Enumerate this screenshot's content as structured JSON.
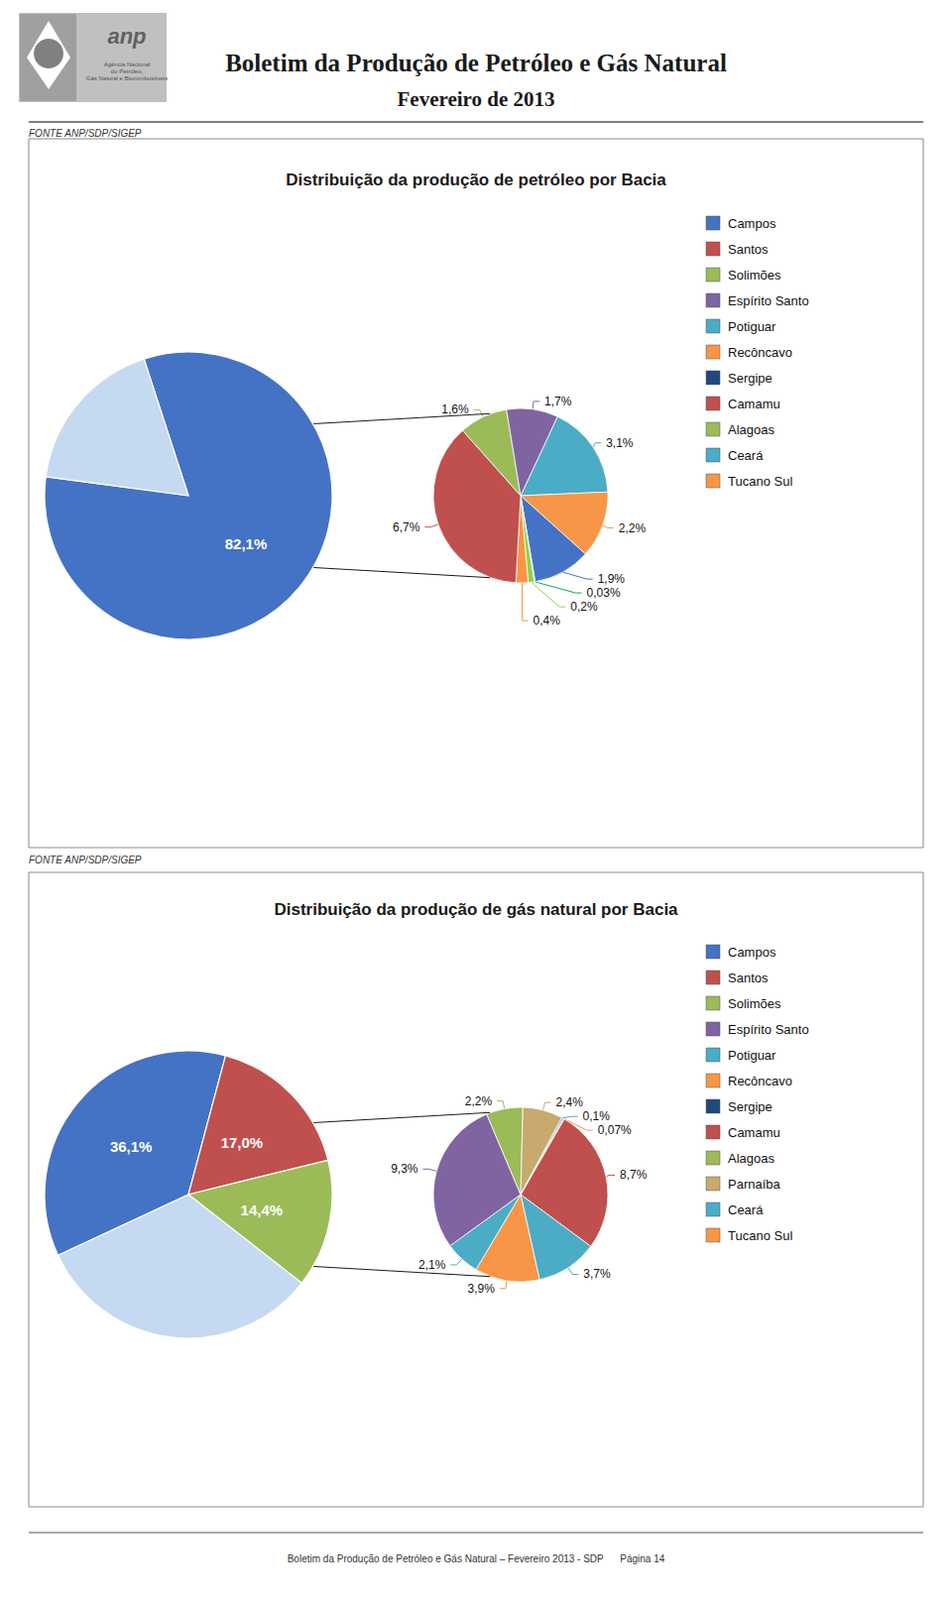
{
  "chart_data": [
    {
      "type": "pie",
      "title": "Distribuição da produção de petróleo por Bacia",
      "annotations": [
        "Boletim da Produção de Petróleo e Gás Natural",
        "Fevereiro de 2013",
        "anp",
        "Agência Nacional\ndo Petróleo,\nGás Natural e Biocombustíveis",
        "FONTE ANP/SDP/SIGEP"
      ],
      "data_labels": true,
      "series": [
        {
          "type": "pie",
          "values": [
            82.1,
            17.9
          ],
          "value_labels": [
            "82,1%",
            null
          ],
          "colors": [
            "#4472C4",
            "#C5D9F1"
          ]
        },
        {
          "type": "pie",
          "values": [
            3.1,
            2.2,
            1.9,
            0.03,
            0.2,
            0.4,
            6.7,
            1.6,
            1.7
          ],
          "value_labels": [
            "3,1%",
            "2,2%",
            "1,9%",
            "0,03%",
            "0,2%",
            "0,4%",
            "6,7%",
            "1,6%",
            "1,7%"
          ],
          "colors": [
            "#4BACC6",
            "#F79646",
            "#4472C4",
            "#00B050",
            "#92D050",
            "#F79646",
            "#C0504D",
            "#9BBB59",
            "#8064A2"
          ]
        }
      ],
      "legend": "right",
      "legend_entries": [
        {
          "name": "Campos",
          "color": "#4472C4"
        },
        {
          "name": "Santos",
          "color": "#C0504D"
        },
        {
          "name": "Solimões",
          "color": "#9BBB59"
        },
        {
          "name": "Espírito Santo",
          "color": "#8064A2"
        },
        {
          "name": "Potiguar",
          "color": "#4BACC6"
        },
        {
          "name": "Recôncavo",
          "color": "#F79646"
        },
        {
          "name": "Sergipe",
          "color": "#1F497D"
        },
        {
          "name": "Camamu",
          "color": "#C0504D"
        },
        {
          "name": "Alagoas",
          "color": "#9BBB59"
        },
        {
          "name": "Ceará",
          "color": "#4BACC6"
        },
        {
          "name": "Tucano Sul",
          "color": "#F79646"
        }
      ]
    },
    {
      "type": "pie",
      "title": "Distribuição da produção de gás natural por Bacia",
      "annotations": [
        "FONTE ANP/SDP/SIGEP",
        "Boletim da Produção de Petróleo e Gás Natural – Fevereiro 2013 - SDP      Página 14"
      ],
      "data_labels": true,
      "series": [
        {
          "type": "pie",
          "values": [
            36.1,
            17.0,
            14.4,
            32.5
          ],
          "value_labels": [
            "36,1%",
            "17,0%",
            "14,4%",
            null
          ],
          "colors": [
            "#4472C4",
            "#C0504D",
            "#9BBB59",
            "#C5D9F1"
          ]
        },
        {
          "type": "pie",
          "values": [
            8.7,
            3.7,
            3.9,
            2.1,
            9.3,
            2.2,
            2.4,
            0.1,
            0.07
          ],
          "value_labels": [
            "8,7%",
            "3,7%",
            "3,9%",
            "2,1%",
            "9,3%",
            "2,2%",
            "2,4%",
            "0,1%",
            "0,07%"
          ],
          "colors": [
            "#C0504D",
            "#4BACC6",
            "#F79646",
            "#4BACC6",
            "#8064A2",
            "#9BBB59",
            "#C8A96E",
            "#4BACC6",
            "#F79646"
          ]
        }
      ],
      "legend": "right",
      "legend_entries": [
        {
          "name": "Campos",
          "color": "#4472C4"
        },
        {
          "name": "Santos",
          "color": "#C0504D"
        },
        {
          "name": "Solimões",
          "color": "#9BBB59"
        },
        {
          "name": "Espírito Santo",
          "color": "#8064A2"
        },
        {
          "name": "Potiguar",
          "color": "#4BACC6"
        },
        {
          "name": "Recôncavo",
          "color": "#F79646"
        },
        {
          "name": "Sergipe",
          "color": "#1F497D"
        },
        {
          "name": "Camamu",
          "color": "#C0504D"
        },
        {
          "name": "Alagoas",
          "color": "#9BBB59"
        },
        {
          "name": "Parnaíba",
          "color": "#C8A96E"
        },
        {
          "name": "Ceará",
          "color": "#4BACC6"
        },
        {
          "name": "Tucano Sul",
          "color": "#F79646"
        }
      ]
    }
  ]
}
